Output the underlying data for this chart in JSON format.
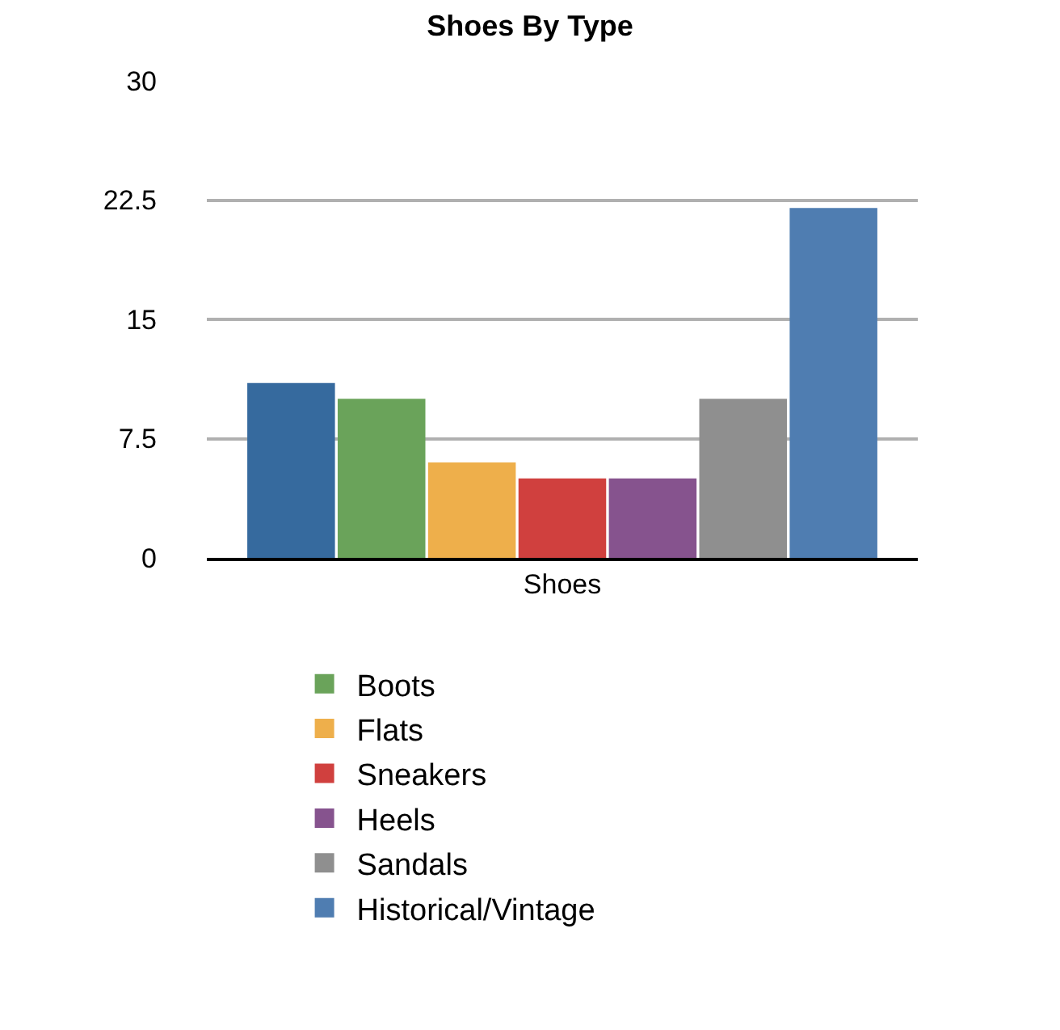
{
  "chart_data": {
    "type": "bar",
    "title": "Shoes By Type",
    "categories": [
      "Shoes"
    ],
    "series": [
      {
        "color": "#366a9e",
        "values": [
          11
        ]
      },
      {
        "name": "Boots",
        "color": "#6aa35a",
        "values": [
          10
        ]
      },
      {
        "name": "Flats",
        "color": "#eeaf4b",
        "values": [
          6
        ]
      },
      {
        "name": "Sneakers",
        "color": "#d0403e",
        "values": [
          5
        ]
      },
      {
        "name": "Heels",
        "color": "#86538e",
        "values": [
          5
        ]
      },
      {
        "name": "Sandals",
        "color": "#8f8f8f",
        "values": [
          10
        ]
      },
      {
        "name": "Historical/Vintage",
        "color": "#4f7db1",
        "values": [
          22
        ]
      }
    ],
    "ylim": [
      0,
      30
    ],
    "yticks": [
      0,
      7.5,
      15,
      22.5,
      30
    ],
    "grid": "y",
    "legend": "bottom"
  }
}
